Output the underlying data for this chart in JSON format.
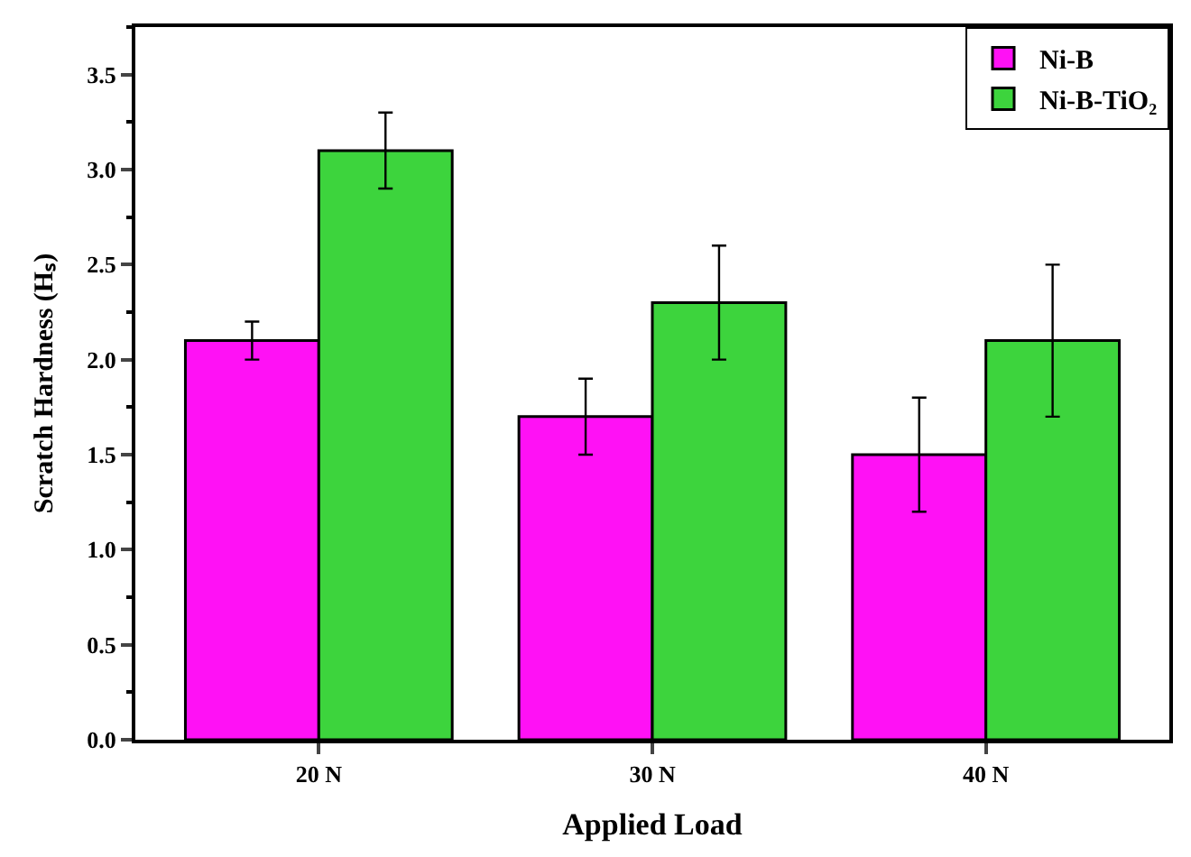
{
  "chart_data": {
    "type": "bar",
    "xlabel": "Applied Load",
    "ylabel": "Scratch Hardness (Hₛ)",
    "categories": [
      "20 N",
      "30 N",
      "40 N"
    ],
    "series": [
      {
        "name": "Ni-B",
        "color": "#ff11f5",
        "values": [
          2.1,
          1.7,
          1.5
        ],
        "errors": [
          0.1,
          0.2,
          0.3
        ]
      },
      {
        "name": "Ni-B-TiO₂",
        "color": "#3dd43d",
        "values": [
          3.1,
          2.3,
          2.1
        ],
        "errors": [
          0.2,
          0.3,
          0.4
        ]
      }
    ],
    "ylim": [
      0,
      3.75
    ],
    "yticks": [
      {
        "value": 0,
        "label": "0.0"
      },
      0.5,
      {
        "value": 1,
        "label": "1.0"
      },
      1.5,
      {
        "value": 2,
        "label": "2.0"
      },
      2.5,
      {
        "value": 3,
        "label": "3.0"
      },
      3.5
    ],
    "legend": "top right"
  }
}
